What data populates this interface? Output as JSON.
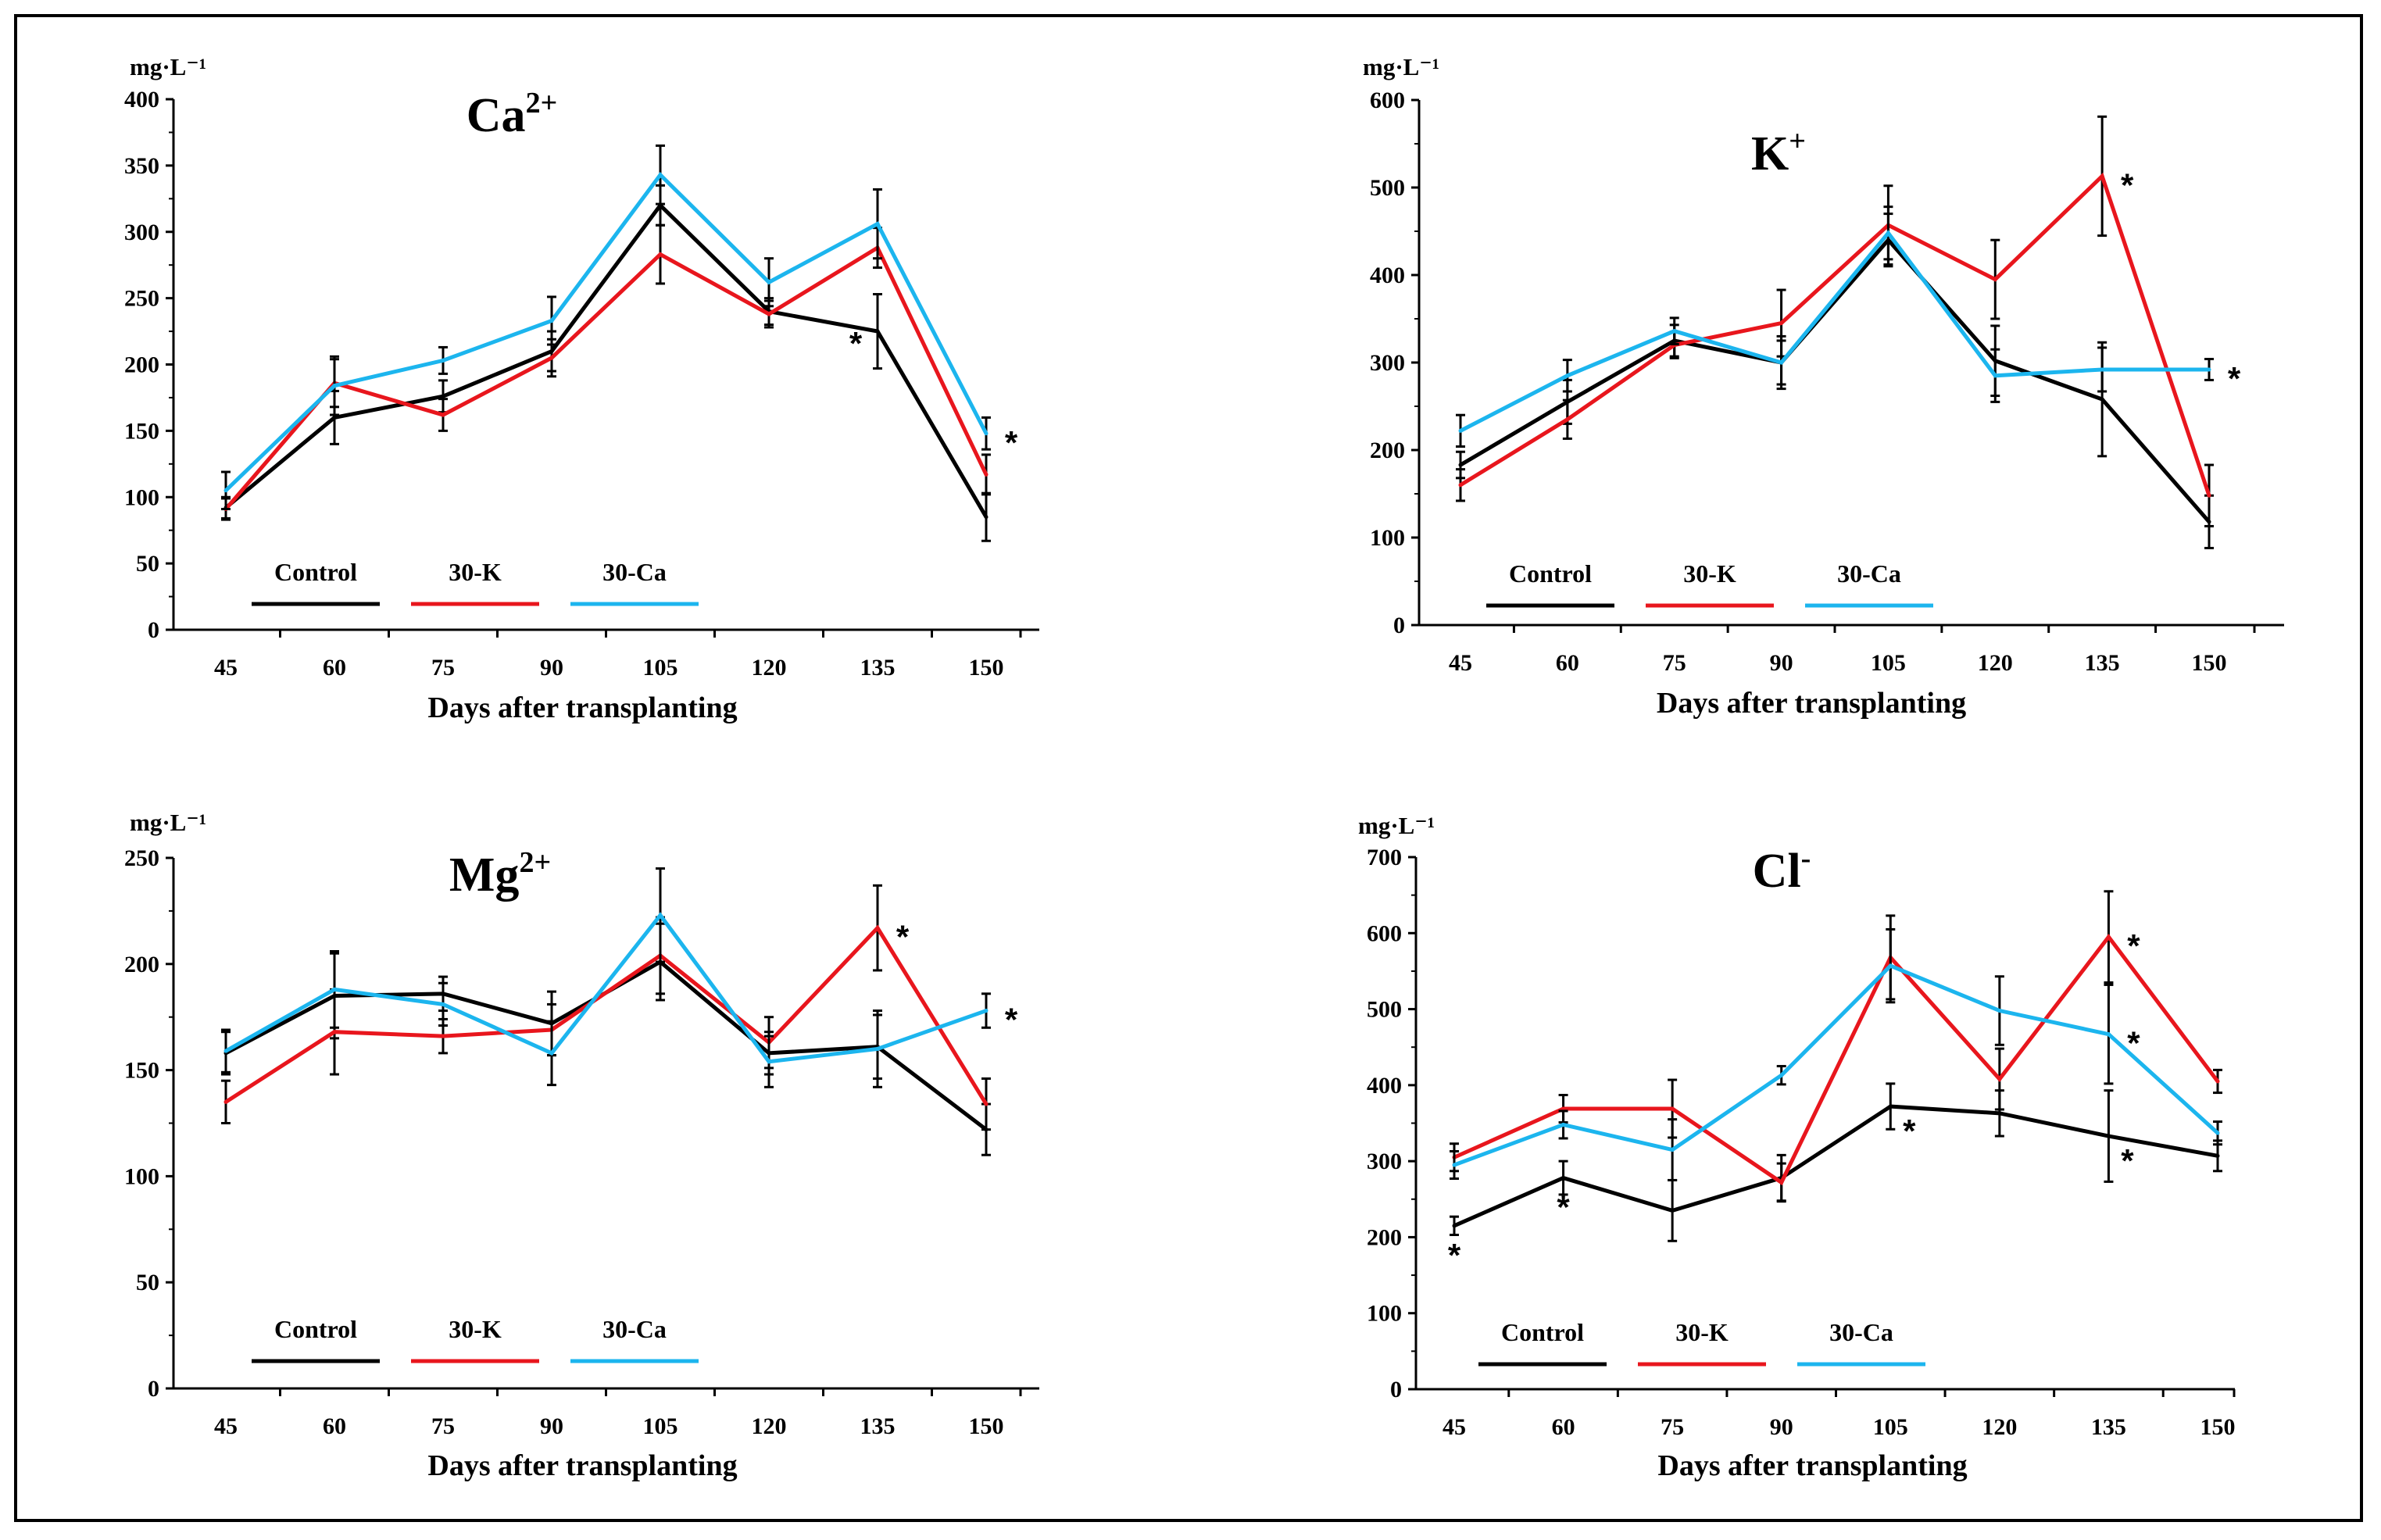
{
  "colors": {
    "Control": "#000000",
    "30-K": "#e8161d",
    "30-Ca": "#1cb5ee"
  },
  "chart_data": [
    {
      "type": "line",
      "title": "Ca",
      "title_sup": "2+",
      "ylabel": "mg·L⁻¹",
      "xlabel": "Days after transplanting",
      "categories": [
        "45",
        "60",
        "75",
        "90",
        "105",
        "120",
        "135",
        "150"
      ],
      "ylim": [
        0,
        400
      ],
      "yticks": [
        0,
        50,
        100,
        150,
        200,
        250,
        300,
        350,
        400
      ],
      "legend": [
        "Control",
        "30-K",
        "30-Ca"
      ],
      "series": [
        {
          "name": "Control",
          "values": [
            92,
            160,
            176,
            210,
            320,
            240,
            225,
            85
          ],
          "errors": [
            8,
            20,
            12,
            15,
            15,
            10,
            28,
            18
          ]
        },
        {
          "name": "30-K",
          "values": [
            91,
            186,
            162,
            205,
            283,
            238,
            288,
            117
          ],
          "errors": [
            8,
            18,
            12,
            14,
            22,
            10,
            15,
            15
          ]
        },
        {
          "name": "30-Ca",
          "values": [
            105,
            184,
            203,
            233,
            343,
            262,
            306,
            148
          ],
          "errors": [
            14,
            22,
            10,
            18,
            22,
            18,
            26,
            12
          ]
        }
      ],
      "annotations": [
        {
          "text": "*",
          "x": "135",
          "y": 225,
          "side": "left"
        },
        {
          "text": "*",
          "x": "150",
          "y": 148,
          "side": "right"
        }
      ]
    },
    {
      "type": "line",
      "title": "K",
      "title_sup": "+",
      "ylabel": "mg·L⁻¹",
      "xlabel": "Days after transplanting",
      "categories": [
        "45",
        "60",
        "75",
        "90",
        "105",
        "120",
        "135",
        "150"
      ],
      "ylim": [
        0,
        600
      ],
      "yticks": [
        0,
        100,
        200,
        300,
        400,
        500,
        600
      ],
      "legend": [
        "Control",
        "30-K",
        "30-Ca"
      ],
      "series": [
        {
          "name": "Control",
          "values": [
            183,
            255,
            325,
            300,
            440,
            302,
            258,
            118
          ],
          "errors": [
            15,
            25,
            18,
            30,
            30,
            40,
            65,
            30
          ]
        },
        {
          "name": "30-K",
          "values": [
            160,
            235,
            320,
            345,
            457,
            395,
            513,
            148
          ],
          "errors": [
            18,
            22,
            15,
            38,
            45,
            45,
            68,
            35
          ]
        },
        {
          "name": "30-Ca",
          "values": [
            222,
            285,
            336,
            300,
            448,
            285,
            292,
            292
          ],
          "errors": [
            18,
            18,
            15,
            25,
            30,
            30,
            25,
            12
          ]
        }
      ],
      "annotations": [
        {
          "text": "*",
          "x": "135",
          "y": 513,
          "side": "right"
        },
        {
          "text": "*",
          "x": "150",
          "y": 292,
          "side": "right"
        }
      ]
    },
    {
      "type": "line",
      "title": "Mg",
      "title_sup": "2+",
      "ylabel": "mg·L⁻¹",
      "xlabel": "Days after transplanting",
      "categories": [
        "45",
        "60",
        "75",
        "90",
        "105",
        "120",
        "135",
        "150"
      ],
      "ylim": [
        0,
        250
      ],
      "yticks": [
        0,
        50,
        100,
        150,
        200,
        250
      ],
      "legend": [
        "Control",
        "30-K",
        "30-Ca"
      ],
      "series": [
        {
          "name": "Control",
          "values": [
            158,
            185,
            186,
            172,
            201,
            158,
            161,
            122
          ],
          "errors": [
            10,
            20,
            8,
            15,
            18,
            10,
            15,
            12
          ]
        },
        {
          "name": "30-K",
          "values": [
            135,
            168,
            166,
            169,
            204,
            163,
            217,
            134
          ],
          "errors": [
            10,
            20,
            8,
            12,
            18,
            12,
            20,
            12
          ]
        },
        {
          "name": "30-Ca",
          "values": [
            159,
            188,
            181,
            158,
            223,
            154,
            160,
            178
          ],
          "errors": [
            10,
            18,
            10,
            15,
            22,
            12,
            18,
            8
          ]
        }
      ],
      "annotations": [
        {
          "text": "*",
          "x": "135",
          "y": 217,
          "side": "right"
        },
        {
          "text": "*",
          "x": "150",
          "y": 178,
          "side": "right"
        }
      ]
    },
    {
      "type": "line",
      "title": "Cl",
      "title_sup": "-",
      "ylabel": "mg·L⁻¹",
      "xlabel": "Days after transplanting",
      "categories": [
        "45",
        "60",
        "75",
        "90",
        "105",
        "120",
        "135",
        "150"
      ],
      "ylim": [
        0,
        700
      ],
      "yticks": [
        0,
        100,
        200,
        300,
        400,
        500,
        600,
        700
      ],
      "legend": [
        "Control",
        "30-K",
        "30-Ca"
      ],
      "series": [
        {
          "name": "Control",
          "values": [
            215,
            278,
            235,
            278,
            372,
            363,
            333,
            307
          ],
          "errors": [
            12,
            22,
            40,
            30,
            30,
            30,
            60,
            20
          ]
        },
        {
          "name": "30-K",
          "values": [
            305,
            369,
            369,
            272,
            568,
            408,
            595,
            405
          ],
          "errors": [
            18,
            18,
            38,
            25,
            55,
            40,
            60,
            15
          ]
        },
        {
          "name": "30-Ca",
          "values": [
            295,
            348,
            315,
            413,
            557,
            498,
            467,
            337
          ],
          "errors": [
            18,
            18,
            40,
            12,
            48,
            45,
            65,
            15
          ]
        }
      ],
      "annotations": [
        {
          "text": "*",
          "x": "45",
          "y": 215,
          "side": "below"
        },
        {
          "text": "*",
          "x": "60",
          "y": 278,
          "side": "below"
        },
        {
          "text": "*",
          "x": "105",
          "y": 372,
          "side": "below-right"
        },
        {
          "text": "*",
          "x": "135",
          "y": 595,
          "side": "right"
        },
        {
          "text": "*",
          "x": "135",
          "y": 467,
          "side": "right"
        },
        {
          "text": "*",
          "x": "135",
          "y": 333,
          "side": "below-right"
        }
      ]
    }
  ]
}
